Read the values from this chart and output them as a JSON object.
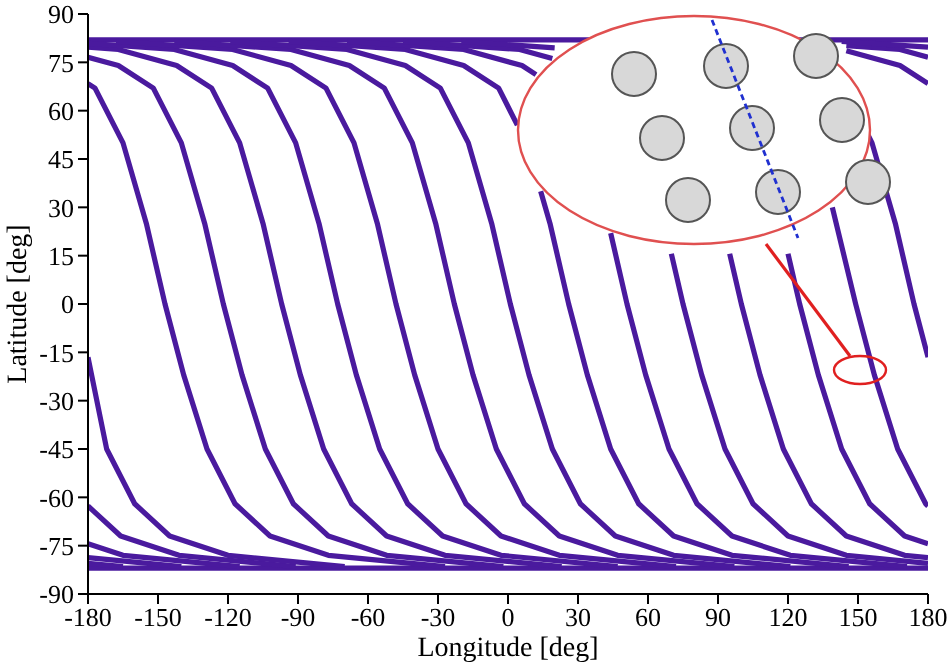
{
  "chart_data": {
    "type": "line",
    "xlabel": "Longitude [deg]",
    "ylabel": "Latitude [deg]",
    "xlim": [
      -180,
      180
    ],
    "xticks": [
      -180,
      -150,
      -120,
      -90,
      -60,
      -30,
      0,
      30,
      60,
      90,
      120,
      150,
      180
    ],
    "ylim": [
      -90,
      90
    ],
    "yticks": [
      -90,
      -75,
      -60,
      -45,
      -30,
      -15,
      0,
      15,
      30,
      45,
      60,
      75,
      90
    ],
    "marker": "none",
    "line_style": "solid",
    "series": [
      {
        "color": "#4a1a9e",
        "x": [
          -180,
          180
        ],
        "values": [
          82,
          82
        ]
      },
      {
        "color": "#4a1a9e",
        "x": [
          -180,
          180
        ],
        "values": [
          -82,
          -82
        ]
      },
      {
        "color": "#4a1a9e",
        "x": [
          -180,
          -177,
          -165,
          -155,
          -147,
          -139,
          -129,
          -117,
          -102,
          -77,
          -27
        ],
        "values": [
          68.4,
          67,
          50,
          25,
          0,
          -22,
          -45,
          -62,
          -72,
          -78,
          -81.5
        ]
      },
      {
        "color": "#4a1a9e",
        "x": [
          145,
          168,
          180
        ],
        "values": [
          78.6,
          74,
          68.4
        ]
      },
      {
        "color": "#4a1a9e",
        "x": [
          -180,
          -167,
          -152,
          -140,
          -130,
          -122,
          -114,
          -104,
          -92,
          -77,
          -52,
          -2
        ],
        "values": [
          76.6,
          74,
          67,
          50,
          25,
          0,
          -22,
          -45,
          -62,
          -72,
          -78,
          -81.5
        ]
      },
      {
        "color": "#4a1a9e",
        "x": [
          145,
          168,
          180
        ],
        "values": [
          80.2,
          79,
          76.6
        ]
      },
      {
        "color": "#4a1a9e",
        "x": [
          -180,
          -167,
          -142,
          -127,
          -115,
          -105,
          -97,
          -89,
          -79,
          -67,
          -52,
          -27,
          23
        ],
        "values": [
          79.7,
          79,
          74,
          67,
          50,
          25,
          0,
          -22,
          -45,
          -62,
          -72,
          -78,
          -81.5
        ]
      },
      {
        "color": "#4a1a9e",
        "x": [
          143,
          180
        ],
        "values": [
          81.5,
          79.7
        ]
      },
      {
        "color": "#4a1a9e",
        "x": [
          -180,
          -143,
          -118,
          -103,
          -91,
          -81,
          -73,
          -65,
          -55,
          -43,
          -28,
          -3,
          47
        ],
        "values": [
          80.9,
          79,
          74,
          67,
          50,
          25,
          0,
          -22,
          -45,
          -62,
          -72,
          -78,
          -81.5
        ]
      },
      {
        "color": "#4a1a9e",
        "x": [
          -168,
          -118,
          -93,
          -78,
          -66,
          -56,
          -48,
          -40,
          -30,
          -18,
          -3,
          22,
          72
        ],
        "values": [
          81.5,
          79,
          74,
          67,
          50,
          25,
          0,
          -22,
          -45,
          -62,
          -72,
          -78,
          -81.5
        ]
      },
      {
        "color": "#4a1a9e",
        "x": [
          -143,
          -93,
          -68,
          -53,
          -41,
          -31,
          -23,
          -15,
          -5,
          7,
          22,
          47,
          97
        ],
        "values": [
          81.5,
          79,
          74,
          67,
          50,
          25,
          0,
          -22,
          -45,
          -62,
          -72,
          -78,
          -81.5
        ]
      },
      {
        "color": "#4a1a9e",
        "x": [
          -119,
          -69,
          -44,
          -29,
          -17,
          -7,
          1,
          9,
          19,
          31,
          46,
          71,
          121
        ],
        "values": [
          81.5,
          79,
          74,
          67,
          50,
          25,
          0,
          -22,
          -45,
          -62,
          -72,
          -78,
          -81.5
        ]
      },
      {
        "color": "#4a1a9e",
        "x": [
          -94,
          -44,
          -19,
          -4,
          4,
          6,
          14,
          18,
          26,
          34,
          44,
          56,
          71,
          96,
          146
        ],
        "values": [
          81.5,
          79,
          74,
          67,
          55.5,
          null,
          35,
          25,
          0,
          -22,
          -45,
          -62,
          -72,
          -78,
          -81.5
        ]
      },
      {
        "color": "#4a1a9e",
        "x": [
          -69,
          -19,
          6,
          12,
          30,
          44,
          51,
          59,
          69,
          81,
          96,
          121,
          171
        ],
        "values": [
          81.5,
          79,
          74,
          71.2,
          null,
          22,
          0,
          -22,
          -45,
          -62,
          -72,
          -78,
          -81.5
        ]
      },
      {
        "color": "#4a1a9e",
        "x": [
          -45,
          5,
          19,
          45,
          70,
          75,
          83,
          93,
          105,
          120,
          145,
          180
        ],
        "values": [
          81.5,
          79,
          76.2,
          null,
          15.6,
          0,
          -22,
          -45,
          -62,
          -72,
          -78,
          -80.5
        ]
      },
      {
        "color": "#4a1a9e",
        "x": [
          -180,
          -165
        ],
        "values": [
          -80.5,
          -81.5
        ]
      },
      {
        "color": "#4a1a9e",
        "x": [
          -20,
          20,
          60,
          95,
          100,
          108,
          118,
          130,
          145,
          170,
          180
        ],
        "values": [
          81.5,
          79.5,
          null,
          15.6,
          0,
          -22,
          -45,
          -62,
          -72,
          -78,
          -78.7
        ]
      },
      {
        "color": "#4a1a9e",
        "x": [
          -180,
          -140
        ],
        "values": [
          -78.7,
          -81.5
        ]
      },
      {
        "color": "#4a1a9e",
        "x": [
          120,
          125,
          133,
          143,
          155,
          170,
          180
        ],
        "values": [
          15.6,
          0,
          -22,
          -45,
          -62,
          -72,
          -74.4
        ]
      },
      {
        "color": "#4a1a9e",
        "x": [
          -180,
          -165,
          -115
        ],
        "values": [
          -74.4,
          -78,
          -81.5
        ]
      },
      {
        "color": "#4a1a9e",
        "x": [
          139,
          149,
          157,
          167,
          179,
          180
        ],
        "values": [
          30,
          0,
          -22,
          -45,
          -62,
          -62.7
        ]
      },
      {
        "color": "#4a1a9e",
        "x": [
          -180,
          -166,
          -141,
          -91
        ],
        "values": [
          -62.7,
          -72,
          -78,
          -81.5
        ]
      },
      {
        "color": "#4a1a9e",
        "x": [
          153.6,
          156,
          166,
          174,
          180
        ],
        "values": [
          53.5,
          50,
          25,
          0,
          -16.5
        ]
      },
      {
        "color": "#4a1a9e",
        "x": [
          -180,
          -172,
          -160,
          -145,
          -120,
          -70
        ],
        "values": [
          -16.5,
          -45,
          -62,
          -72,
          -78,
          -81.5
        ]
      }
    ]
  }
}
